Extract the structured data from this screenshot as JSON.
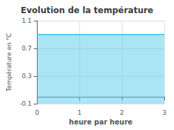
{
  "chart_data": {
    "type": "area",
    "title": "Evolution de la température",
    "xlabel": "heure par heure",
    "ylabel": "Température en °C",
    "x": [
      0,
      3
    ],
    "values": [
      0.9,
      0.9
    ],
    "color": "#55ccee",
    "xlim": [
      0,
      3
    ],
    "ylim": [
      -0.1,
      1.1
    ],
    "xticks": [
      0,
      1,
      2,
      3
    ],
    "yticks": [
      -0.1,
      0.3,
      0.7,
      1.1
    ],
    "grid": true
  }
}
